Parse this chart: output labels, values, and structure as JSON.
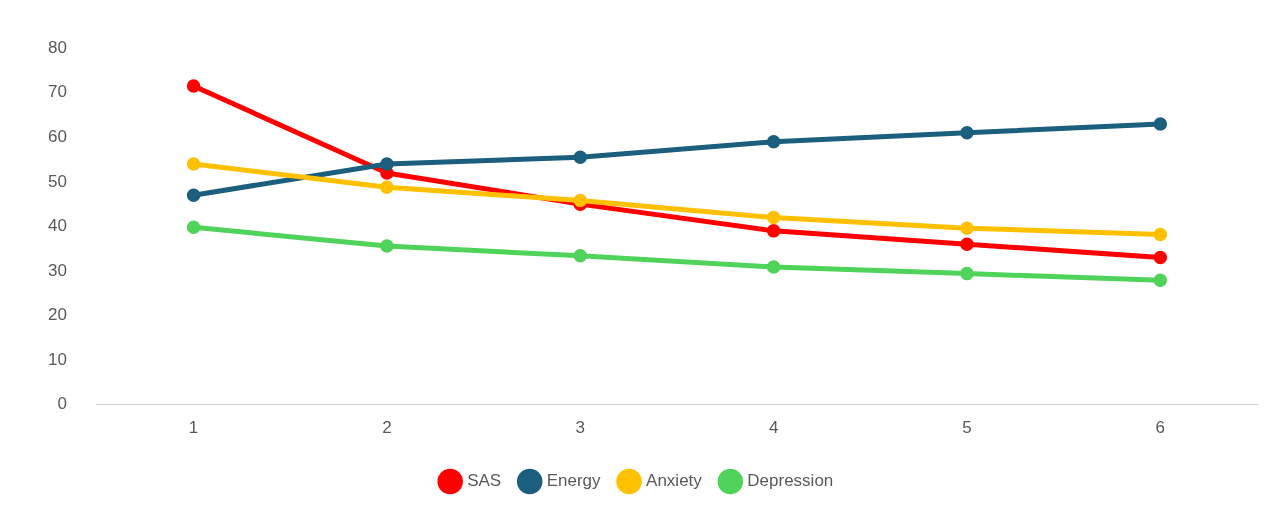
{
  "chart_data": {
    "type": "line",
    "categories": [
      "1",
      "2",
      "3",
      "4",
      "5",
      "6"
    ],
    "series": [
      {
        "name": "SAS",
        "color": "#ff0000",
        "values": [
          71.5,
          52,
          45,
          39,
          36,
          33
        ]
      },
      {
        "name": "Energy",
        "color": "#1b5e7d",
        "values": [
          47,
          54,
          55.5,
          59,
          61,
          63
        ]
      },
      {
        "name": "Anxiety",
        "color": "#ffc000",
        "values": [
          54,
          48.8,
          45.8,
          42,
          39.6,
          38.2
        ]
      },
      {
        "name": "Depression",
        "color": "#4fd35a",
        "values": [
          39.8,
          35.6,
          33.4,
          30.9,
          29.4,
          27.9
        ]
      }
    ],
    "ylim": [
      0,
      80
    ],
    "yticks": [
      0,
      10,
      20,
      30,
      40,
      50,
      60,
      70,
      80
    ],
    "grid": false,
    "legend": "bottom",
    "marker": "circle",
    "line_style": "solid"
  }
}
